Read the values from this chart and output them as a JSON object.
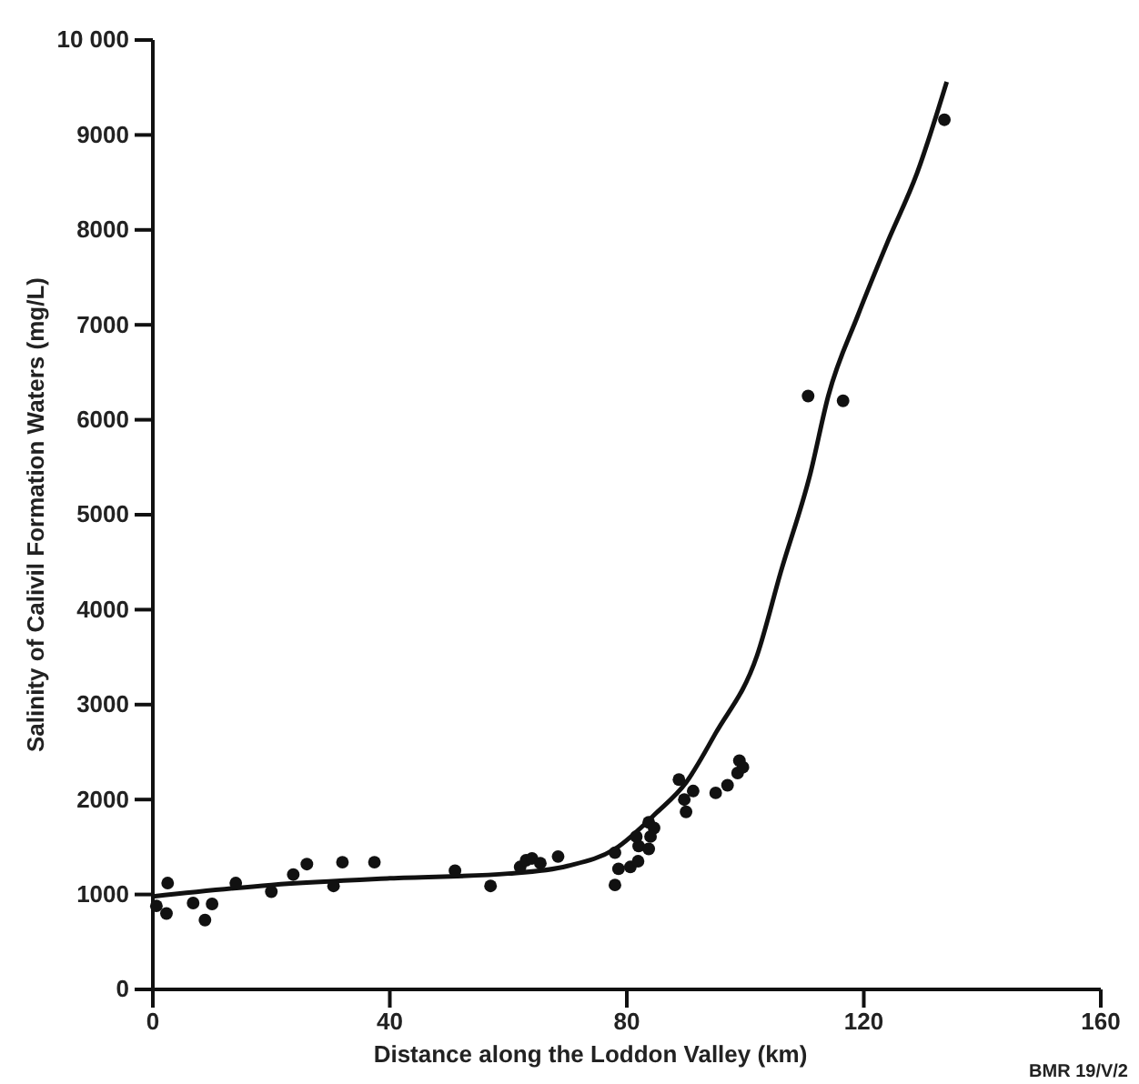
{
  "chart_data": {
    "type": "scatter",
    "xlabel": "Distance along the Loddon Valley (km)",
    "ylabel": "Salinity of Calivil Formation Waters (mg/L)",
    "annotations": [
      "BMR 19/V/2"
    ],
    "xlim": [
      0,
      160
    ],
    "ylim": [
      0,
      10000
    ],
    "xticks": [
      0,
      40,
      80,
      120,
      160
    ],
    "yticks": [
      0,
      1000,
      2000,
      3000,
      4000,
      5000,
      6000,
      7000,
      8000,
      9000,
      {
        "value": 10000,
        "label": "10 000"
      }
    ],
    "grid": false,
    "marker": "circle",
    "series": [
      {
        "color": "#111111",
        "x": [
          0.6,
          2.5,
          2.3,
          6.8,
          8.8,
          10,
          14,
          20,
          23.7,
          26,
          30.5,
          32,
          37.4,
          51,
          57,
          62,
          63,
          64,
          65.4,
          68.4,
          78,
          78.6,
          78,
          80.6,
          81.9,
          82,
          81.6,
          83.7,
          83.7,
          84.6,
          84,
          90,
          89.7,
          88.8,
          91.2,
          95,
          97,
          98.7,
          99,
          99.6,
          110.6,
          116.5,
          133.6
        ],
        "values": [
          880,
          1120,
          800,
          910,
          730,
          900,
          1120,
          1030,
          1210,
          1320,
          1090,
          1340,
          1340,
          1250,
          1090,
          1290,
          1360,
          1380,
          1330,
          1400,
          1440,
          1270,
          1100,
          1290,
          1350,
          1510,
          1610,
          1480,
          1760,
          1700,
          1610,
          1870,
          2000,
          2210,
          2090,
          2070,
          2150,
          2280,
          2410,
          2340,
          6250,
          6200,
          9160
        ]
      },
      {
        "type": "line",
        "color": "#111111",
        "marker": "none",
        "line_style": "solid",
        "x": [
          0,
          20,
          40,
          60,
          70,
          78,
          85,
          90,
          95,
          102,
          106,
          111,
          114,
          119,
          124,
          129,
          134
        ],
        "values": [
          980,
          1100,
          1170,
          1220,
          1300,
          1480,
          1860,
          2180,
          2700,
          3520,
          4400,
          5440,
          6250,
          7100,
          7870,
          8600,
          9560
        ]
      }
    ]
  }
}
